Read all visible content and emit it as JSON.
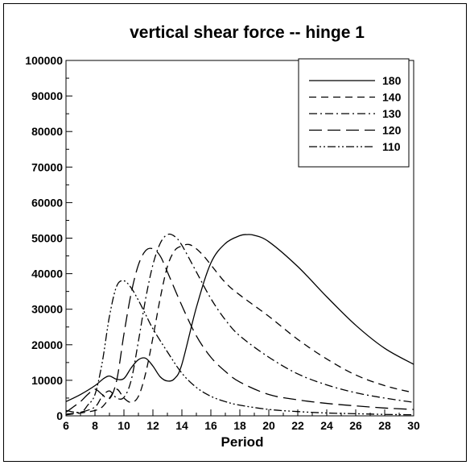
{
  "chart_data": {
    "type": "line",
    "title": "vertical shear force -- hinge 1",
    "xlabel": "Period",
    "ylabel": "",
    "xlim": [
      6,
      30
    ],
    "ylim": [
      0,
      100000
    ],
    "xticks": [
      6,
      8,
      10,
      12,
      14,
      16,
      18,
      20,
      22,
      24,
      26,
      28,
      30
    ],
    "yticks": [
      0,
      10000,
      20000,
      30000,
      40000,
      50000,
      60000,
      70000,
      80000,
      90000,
      100000
    ],
    "grid": false,
    "legend_position": "top-right",
    "series": [
      {
        "name": "180",
        "style": "solid",
        "x": [
          6,
          7,
          8,
          8.6,
          9,
          9.5,
          10,
          10.5,
          11,
          11.5,
          12,
          12.5,
          13,
          13.5,
          14,
          15,
          16,
          17,
          18,
          18.5,
          19,
          20,
          22,
          24,
          26,
          28,
          30
        ],
        "y": [
          4000,
          6000,
          8500,
          10500,
          11200,
          10300,
          10500,
          13500,
          15800,
          16200,
          14000,
          11000,
          9800,
          10500,
          14500,
          30500,
          43000,
          48500,
          50700,
          51000,
          50800,
          49000,
          42000,
          33500,
          25500,
          19000,
          14500
        ]
      },
      {
        "name": "140",
        "style": "dashed",
        "x": [
          6,
          7,
          8,
          8.5,
          9,
          9.5,
          10,
          10.5,
          11,
          11.5,
          12,
          12.5,
          13,
          13.5,
          14,
          14.5,
          15,
          15.5,
          16,
          17,
          18,
          20,
          22,
          24,
          26,
          28,
          30
        ],
        "y": [
          300,
          800,
          1500,
          2500,
          5000,
          7500,
          5000,
          3800,
          5500,
          12000,
          22000,
          33000,
          42000,
          46500,
          47800,
          48200,
          47000,
          45000,
          42500,
          37500,
          34000,
          28000,
          21500,
          16000,
          11500,
          8500,
          6500
        ]
      },
      {
        "name": "130",
        "style": "dash-dot",
        "x": [
          6,
          7,
          8,
          8.5,
          9,
          9.5,
          10,
          10.5,
          11,
          11.5,
          12,
          12.5,
          13,
          13.5,
          14,
          15,
          16,
          17,
          18,
          20,
          22,
          24,
          26,
          28,
          30
        ],
        "y": [
          500,
          1000,
          2500,
          5500,
          7000,
          5000,
          5200,
          10000,
          21000,
          33000,
          42500,
          48500,
          51000,
          50500,
          48000,
          40500,
          33000,
          27000,
          22500,
          16500,
          11800,
          8700,
          6500,
          5000,
          3800
        ]
      },
      {
        "name": "120",
        "style": "long-dash",
        "x": [
          6,
          6.5,
          7,
          7.5,
          8,
          8.5,
          9,
          9.5,
          10,
          10.5,
          11,
          11.5,
          12,
          12.5,
          13,
          14,
          15,
          16,
          17,
          18,
          20,
          22,
          24,
          26,
          28,
          30
        ],
        "y": [
          1000,
          2500,
          4000,
          6000,
          7500,
          6000,
          4800,
          10000,
          23000,
          34500,
          42500,
          46500,
          47000,
          45000,
          40500,
          31000,
          22500,
          16500,
          12500,
          9500,
          6000,
          4500,
          3500,
          2800,
          2200,
          1800
        ]
      },
      {
        "name": "110",
        "style": "dash-dot-dot",
        "x": [
          6,
          7,
          7.5,
          8,
          8.5,
          9,
          9.5,
          10,
          10.5,
          11,
          11.5,
          12,
          13,
          14,
          15,
          16,
          17,
          18,
          20,
          22,
          24,
          26,
          28,
          30
        ],
        "y": [
          1500,
          1000,
          3000,
          6000,
          15000,
          28000,
          36500,
          38000,
          36000,
          32500,
          28500,
          24500,
          18000,
          12000,
          8000,
          5500,
          4000,
          3000,
          1800,
          1200,
          800,
          600,
          400,
          300
        ]
      }
    ]
  }
}
